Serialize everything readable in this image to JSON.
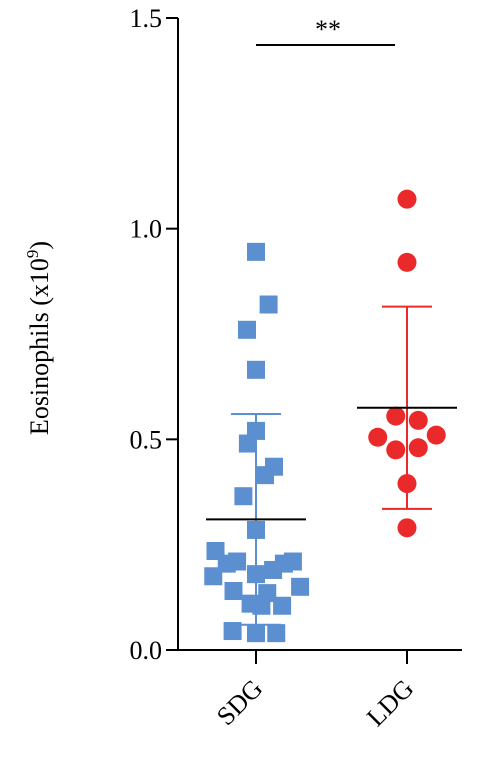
{
  "chart_data": {
    "type": "scatter",
    "ylabel": "Eosinophils (x10",
    "ylabel_sup": "9",
    "ylabel_close": ")",
    "ylim": [
      0,
      1.5
    ],
    "yticks": [
      {
        "value": 0.0,
        "label": "0.0"
      },
      {
        "value": 0.5,
        "label": "0.5"
      },
      {
        "value": 1.0,
        "label": "1.0"
      },
      {
        "value": 1.5,
        "label": "1.5"
      }
    ],
    "categories": [
      "SDG",
      "LDG"
    ],
    "significance": "**",
    "series": [
      {
        "category": "SDG",
        "marker": "square",
        "color": "#5b8fd0",
        "mean": 0.31,
        "sd_upper": 0.56,
        "sd_lower": 0.06,
        "points": [
          {
            "dx": 0.0,
            "y": 0.945
          },
          {
            "dx": 0.28,
            "y": 0.82
          },
          {
            "dx": -0.2,
            "y": 0.76
          },
          {
            "dx": 0.0,
            "y": 0.665
          },
          {
            "dx": 0.0,
            "y": 0.52
          },
          {
            "dx": -0.18,
            "y": 0.49
          },
          {
            "dx": 0.4,
            "y": 0.435
          },
          {
            "dx": 0.2,
            "y": 0.415
          },
          {
            "dx": -0.28,
            "y": 0.365
          },
          {
            "dx": 0.0,
            "y": 0.285
          },
          {
            "dx": -0.9,
            "y": 0.235
          },
          {
            "dx": -0.42,
            "y": 0.21
          },
          {
            "dx": -0.65,
            "y": 0.205
          },
          {
            "dx": 0.62,
            "y": 0.205
          },
          {
            "dx": 0.82,
            "y": 0.21
          },
          {
            "dx": 0.38,
            "y": 0.19
          },
          {
            "dx": 0.0,
            "y": 0.18
          },
          {
            "dx": -0.95,
            "y": 0.175
          },
          {
            "dx": 0.98,
            "y": 0.15
          },
          {
            "dx": -0.5,
            "y": 0.14
          },
          {
            "dx": 0.25,
            "y": 0.135
          },
          {
            "dx": -0.12,
            "y": 0.11
          },
          {
            "dx": 0.12,
            "y": 0.105
          },
          {
            "dx": 0.58,
            "y": 0.105
          },
          {
            "dx": -0.52,
            "y": 0.045
          },
          {
            "dx": 0.0,
            "y": 0.04
          },
          {
            "dx": 0.45,
            "y": 0.04
          }
        ]
      },
      {
        "category": "LDG",
        "marker": "circle",
        "color": "#ea2a2a",
        "mean": 0.575,
        "sd_upper": 0.815,
        "sd_lower": 0.335,
        "points": [
          {
            "dx": 0.0,
            "y": 1.07
          },
          {
            "dx": 0.0,
            "y": 0.92
          },
          {
            "dx": -0.25,
            "y": 0.555
          },
          {
            "dx": 0.25,
            "y": 0.545
          },
          {
            "dx": -0.65,
            "y": 0.505
          },
          {
            "dx": 0.65,
            "y": 0.51
          },
          {
            "dx": -0.25,
            "y": 0.475
          },
          {
            "dx": 0.25,
            "y": 0.48
          },
          {
            "dx": 0.0,
            "y": 0.395
          },
          {
            "dx": 0.0,
            "y": 0.29
          }
        ]
      }
    ]
  }
}
